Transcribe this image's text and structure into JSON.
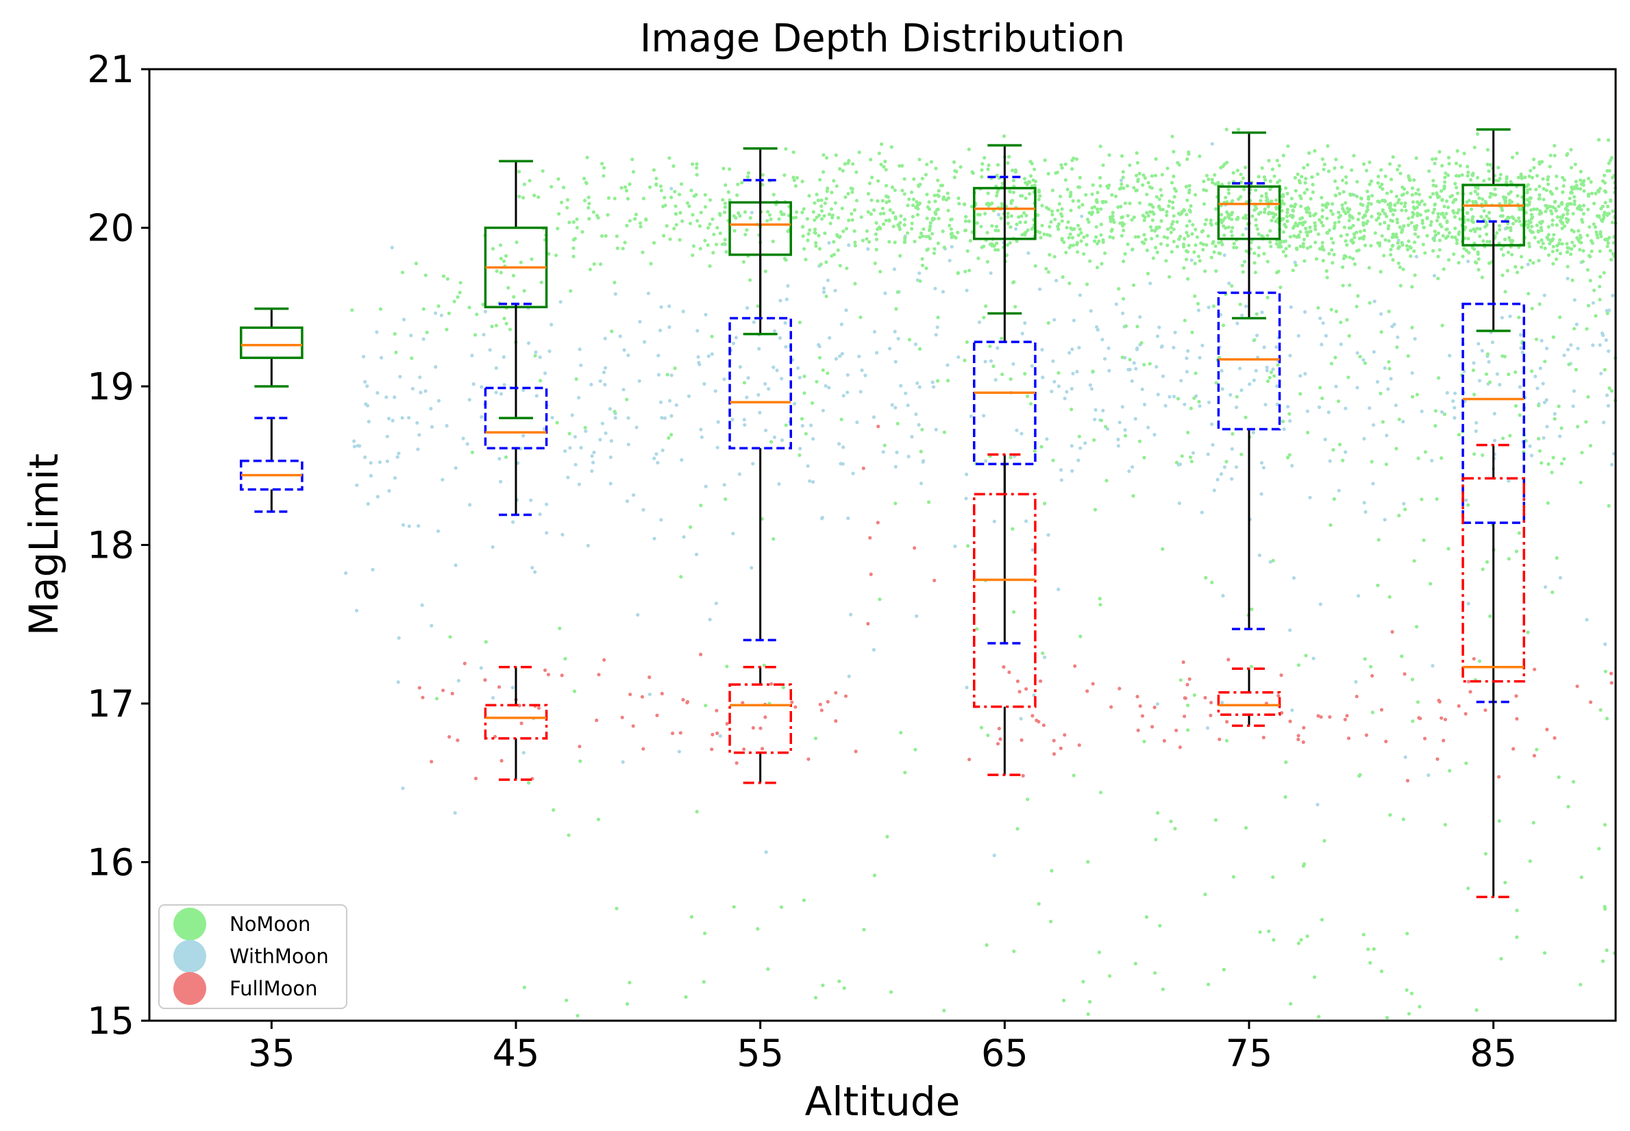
{
  "chart_data": {
    "type": "box",
    "title": "Image Depth Distribution",
    "xlabel": "Altitude",
    "ylabel": "MagLimit",
    "xlim": [
      30,
      90
    ],
    "ylim": [
      15,
      21
    ],
    "xticks": [
      35,
      45,
      55,
      65,
      75,
      85
    ],
    "yticks": [
      15,
      16,
      17,
      18,
      19,
      20,
      21
    ],
    "grid": false,
    "legend_position": "bottom-left",
    "series": [
      {
        "name": "NoMoon",
        "point_color": "#90ee90",
        "box_color": "#008000",
        "box_style": "solid",
        "boxes": [
          {
            "x": 35,
            "whislo": 19.0,
            "q1": 19.18,
            "med": 19.26,
            "q3": 19.37,
            "whishi": 19.49
          },
          {
            "x": 45,
            "whislo": 18.8,
            "q1": 19.5,
            "med": 19.75,
            "q3": 20.0,
            "whishi": 20.42
          },
          {
            "x": 55,
            "whislo": 19.33,
            "q1": 19.83,
            "med": 20.02,
            "q3": 20.16,
            "whishi": 20.5
          },
          {
            "x": 65,
            "whislo": 19.46,
            "q1": 19.93,
            "med": 20.12,
            "q3": 20.25,
            "whishi": 20.52
          },
          {
            "x": 75,
            "whislo": 19.43,
            "q1": 19.93,
            "med": 20.15,
            "q3": 20.26,
            "whishi": 20.6
          },
          {
            "x": 85,
            "whislo": 19.35,
            "q1": 19.89,
            "med": 20.14,
            "q3": 20.27,
            "whishi": 20.62
          }
        ]
      },
      {
        "name": "WithMoon",
        "point_color": "#add8e6",
        "box_color": "#0000ff",
        "box_style": "dashed",
        "boxes": [
          {
            "x": 35,
            "whislo": 18.21,
            "q1": 18.35,
            "med": 18.44,
            "q3": 18.53,
            "whishi": 18.8
          },
          {
            "x": 45,
            "whislo": 18.19,
            "q1": 18.61,
            "med": 18.71,
            "q3": 18.99,
            "whishi": 19.52
          },
          {
            "x": 55,
            "whislo": 17.4,
            "q1": 18.61,
            "med": 18.9,
            "q3": 19.43,
            "whishi": 20.3
          },
          {
            "x": 65,
            "whislo": 17.38,
            "q1": 18.51,
            "med": 18.96,
            "q3": 19.28,
            "whishi": 20.32
          },
          {
            "x": 75,
            "whislo": 17.47,
            "q1": 18.73,
            "med": 19.17,
            "q3": 19.59,
            "whishi": 20.28
          },
          {
            "x": 85,
            "whislo": 17.01,
            "q1": 18.14,
            "med": 18.92,
            "q3": 19.52,
            "whishi": 20.04
          }
        ]
      },
      {
        "name": "FullMoon",
        "point_color": "#f08080",
        "box_color": "#ff0000",
        "box_style": "dashdot",
        "boxes": [
          {
            "x": 45,
            "whislo": 16.52,
            "q1": 16.78,
            "med": 16.91,
            "q3": 16.99,
            "whishi": 17.23
          },
          {
            "x": 55,
            "whislo": 16.5,
            "q1": 16.69,
            "med": 16.99,
            "q3": 17.12,
            "whishi": 17.23
          },
          {
            "x": 65,
            "whislo": 16.55,
            "q1": 16.98,
            "med": 17.78,
            "q3": 18.32,
            "whishi": 18.57
          },
          {
            "x": 75,
            "whislo": 16.86,
            "q1": 16.93,
            "med": 16.99,
            "q3": 17.07,
            "whishi": 17.22
          },
          {
            "x": 85,
            "whislo": 15.78,
            "q1": 17.14,
            "med": 17.23,
            "q3": 18.42,
            "whishi": 18.63
          }
        ]
      }
    ],
    "median_color": "#ff7f0e",
    "whisker_color": "#000000"
  }
}
